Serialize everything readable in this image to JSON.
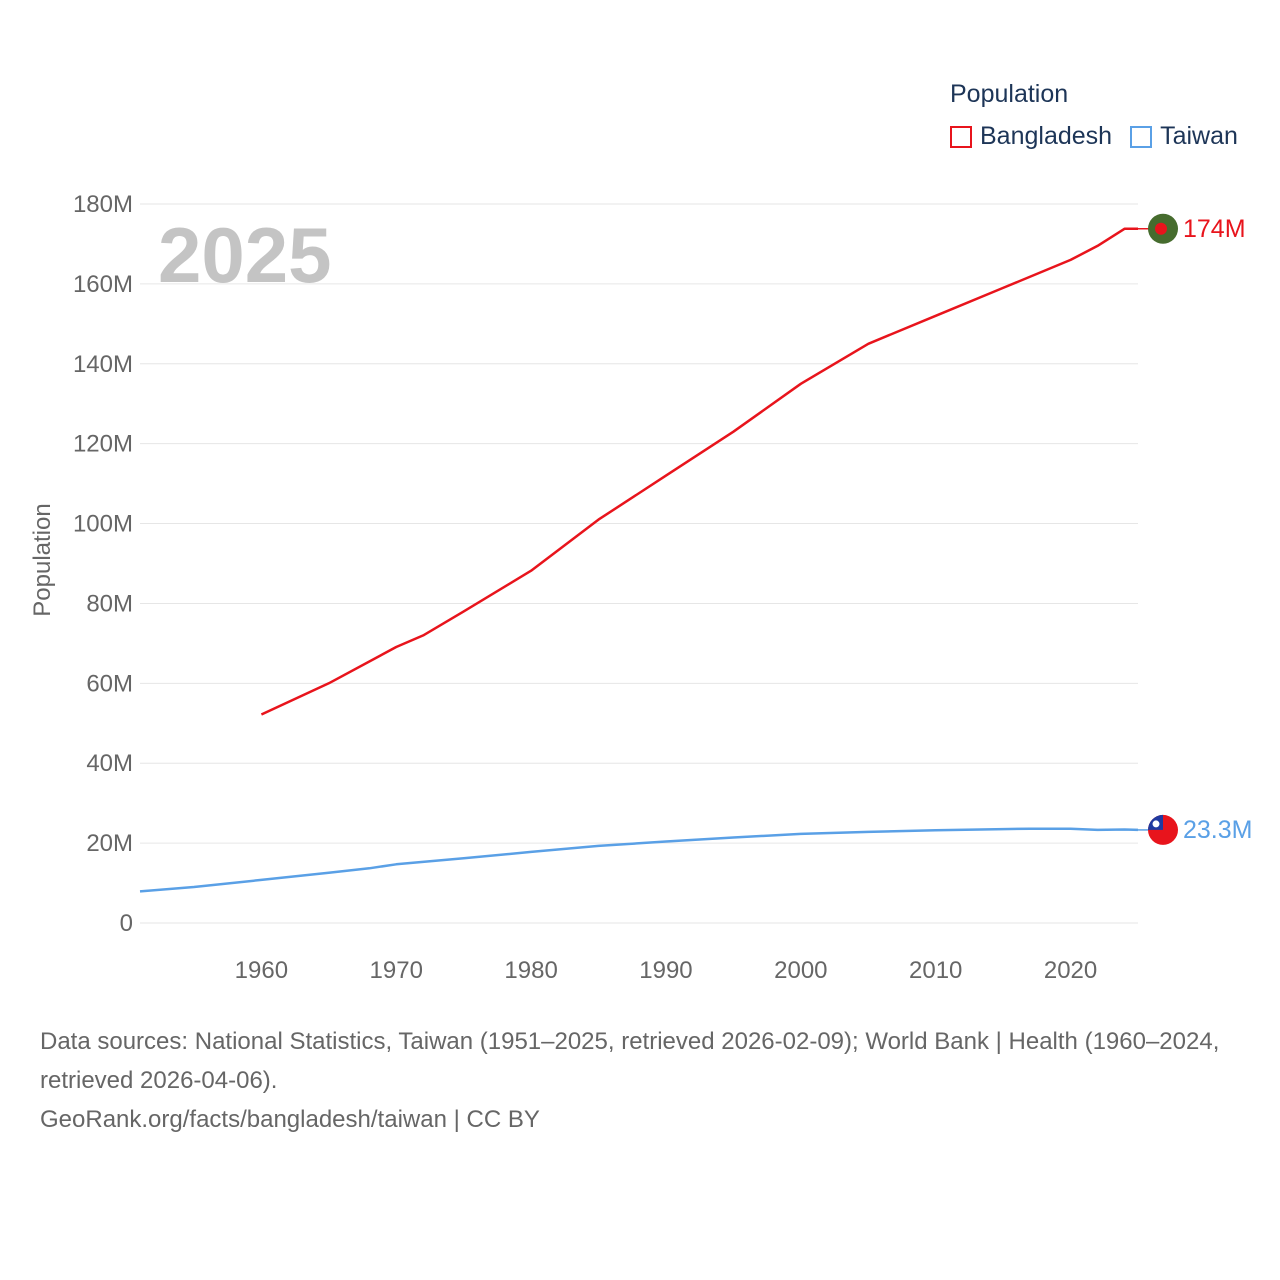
{
  "legend": {
    "title": "Population",
    "items": [
      {
        "label": "Bangladesh",
        "color": "#e8141c"
      },
      {
        "label": "Taiwan",
        "color": "#5aa0e6"
      }
    ]
  },
  "year_label": "2025",
  "chart_data": {
    "type": "line",
    "title": "Population",
    "ylabel": "Population",
    "xlabel": "",
    "xlim": [
      1951,
      2025
    ],
    "ylim": [
      0,
      180000000
    ],
    "y_ticks": [
      {
        "value": 0,
        "label": "0"
      },
      {
        "value": 20000000,
        "label": "20M"
      },
      {
        "value": 40000000,
        "label": "40M"
      },
      {
        "value": 60000000,
        "label": "60M"
      },
      {
        "value": 80000000,
        "label": "80M"
      },
      {
        "value": 100000000,
        "label": "100M"
      },
      {
        "value": 120000000,
        "label": "120M"
      },
      {
        "value": 140000000,
        "label": "140M"
      },
      {
        "value": 160000000,
        "label": "160M"
      },
      {
        "value": 180000000,
        "label": "180M"
      }
    ],
    "x_ticks": [
      {
        "value": 1960,
        "label": "1960"
      },
      {
        "value": 1970,
        "label": "1970"
      },
      {
        "value": 1980,
        "label": "1980"
      },
      {
        "value": 1990,
        "label": "1990"
      },
      {
        "value": 2000,
        "label": "2000"
      },
      {
        "value": 2010,
        "label": "2010"
      },
      {
        "value": 2020,
        "label": "2020"
      }
    ],
    "series": [
      {
        "name": "Bangladesh",
        "color": "#e8141c",
        "end_label": "174M",
        "points": [
          [
            1960,
            52200000
          ],
          [
            1965,
            60000000
          ],
          [
            1970,
            69100000
          ],
          [
            1972,
            72000000
          ],
          [
            1975,
            78000000
          ],
          [
            1980,
            88200000
          ],
          [
            1985,
            101000000
          ],
          [
            1990,
            112000000
          ],
          [
            1995,
            123000000
          ],
          [
            2000,
            135000000
          ],
          [
            2005,
            145000000
          ],
          [
            2010,
            152000000
          ],
          [
            2015,
            159000000
          ],
          [
            2020,
            166000000
          ],
          [
            2022,
            169500000
          ],
          [
            2024,
            173800000
          ],
          [
            2025,
            173800000
          ]
        ]
      },
      {
        "name": "Taiwan",
        "color": "#5aa0e6",
        "end_label": "23.3M",
        "points": [
          [
            1951,
            7900000
          ],
          [
            1955,
            9000000
          ],
          [
            1960,
            10800000
          ],
          [
            1965,
            12600000
          ],
          [
            1968,
            13700000
          ],
          [
            1970,
            14700000
          ],
          [
            1975,
            16200000
          ],
          [
            1980,
            17800000
          ],
          [
            1985,
            19300000
          ],
          [
            1990,
            20400000
          ],
          [
            1995,
            21400000
          ],
          [
            2000,
            22300000
          ],
          [
            2005,
            22800000
          ],
          [
            2010,
            23200000
          ],
          [
            2015,
            23500000
          ],
          [
            2017,
            23600000
          ],
          [
            2020,
            23600000
          ],
          [
            2022,
            23300000
          ],
          [
            2024,
            23400000
          ],
          [
            2025,
            23300000
          ]
        ]
      }
    ]
  },
  "footer": {
    "sources": "Data sources: National Statistics, Taiwan (1951–2025, retrieved 2026-02-09); World Bank | Health (1960–2024, retrieved 2026-04-06).",
    "attribution": "GeoRank.org/facts/bangladesh/taiwan | CC BY"
  }
}
